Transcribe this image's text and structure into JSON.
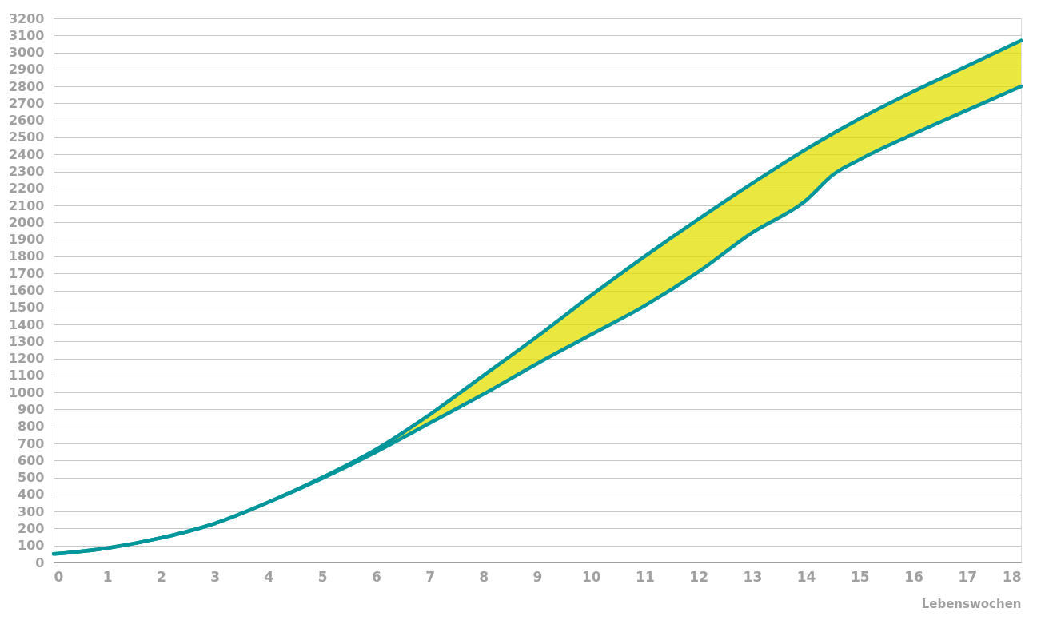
{
  "chart_data": {
    "type": "line",
    "xlabel": "Lebenswochen",
    "xlim": [
      0,
      18
    ],
    "xticks": [
      0,
      1,
      2,
      3,
      4,
      5,
      6,
      7,
      8,
      9,
      10,
      11,
      12,
      13,
      14,
      15,
      16,
      17,
      18
    ],
    "ylim": [
      0,
      3200
    ],
    "yticks": [
      0,
      100,
      200,
      300,
      400,
      500,
      600,
      700,
      800,
      900,
      1000,
      1100,
      1200,
      1300,
      1400,
      1500,
      1600,
      1700,
      1800,
      1900,
      2000,
      2100,
      2200,
      2300,
      2400,
      2500,
      2600,
      2700,
      2800,
      2900,
      3000,
      3100,
      3200
    ],
    "grid": "y",
    "marker": "none",
    "line_style": "solid",
    "series": [
      {
        "color": "#00969b",
        "x": [
          0,
          1,
          2,
          3,
          4,
          5,
          6,
          7,
          8,
          9,
          10,
          11,
          12,
          13,
          14,
          15,
          16,
          17,
          18
        ],
        "values": [
          50,
          85,
          145,
          230,
          355,
          500,
          665,
          870,
          1100,
          1330,
          1570,
          1800,
          2020,
          2230,
          2430,
          2610,
          2770,
          2920,
          3070
        ]
      },
      {
        "color": "#00969b",
        "x": [
          0,
          1,
          2,
          3,
          4,
          5,
          6,
          7,
          8,
          9,
          10,
          11,
          12,
          13,
          14,
          14.5,
          15,
          16,
          17,
          18
        ],
        "values": [
          50,
          85,
          145,
          230,
          355,
          495,
          650,
          820,
          990,
          1170,
          1340,
          1510,
          1710,
          1940,
          2130,
          2280,
          2370,
          2520,
          2660,
          2800
        ],
        "lower": [
          50,
          85,
          145,
          230,
          355,
          495,
          650,
          820,
          990,
          1170,
          1340,
          1510,
          1710,
          1940,
          2130,
          2280,
          2370,
          2520,
          2660,
          2800
        ],
        "upper": [
          50,
          85,
          145,
          230,
          355,
          500,
          665,
          870,
          1100,
          1330,
          1570,
          1800,
          2020,
          2230,
          2430,
          2525,
          2610,
          2770,
          2920,
          3070
        ]
      }
    ]
  }
}
